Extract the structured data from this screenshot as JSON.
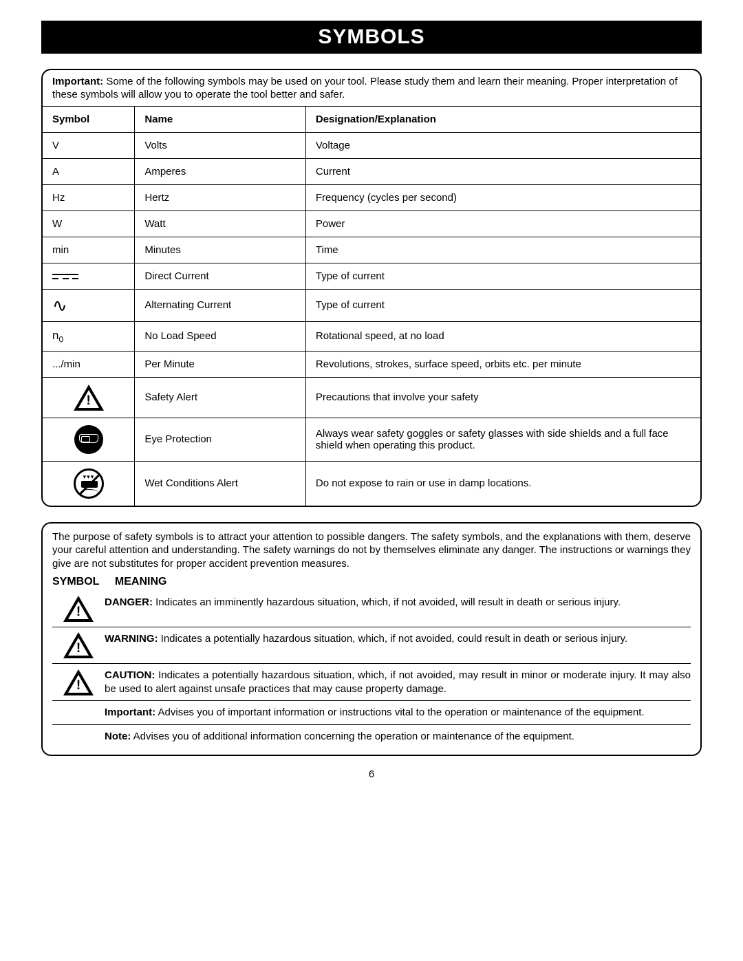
{
  "title": "SYMBOLS",
  "intro_bold": "Important:",
  "intro_text": " Some of the following symbols may be used on your tool. Please study them and learn their meaning. Proper interpretation of these symbols will allow you to operate the tool better and safer.",
  "headers": {
    "symbol": "Symbol",
    "name": "Name",
    "desc": "Designation/Explanation"
  },
  "rows": [
    {
      "sym_text": "V",
      "name": "Volts",
      "desc": "Voltage"
    },
    {
      "sym_text": "A",
      "name": "Amperes",
      "desc": "Current"
    },
    {
      "sym_text": "Hz",
      "name": "Hertz",
      "desc": "Frequency (cycles per second)"
    },
    {
      "sym_text": "W",
      "name": "Watt",
      "desc": "Power"
    },
    {
      "sym_text": "min",
      "name": "Minutes",
      "desc": "Time"
    },
    {
      "icon": "dc",
      "name": "Direct Current",
      "desc": "Type of current"
    },
    {
      "icon": "ac",
      "name": "Alternating Current",
      "desc": "Type of current"
    },
    {
      "icon": "n0",
      "name": "No Load Speed",
      "desc": "Rotational speed, at no load"
    },
    {
      "sym_text": ".../min",
      "name": "Per Minute",
      "desc": "Revolutions, strokes, surface speed, orbits etc. per minute"
    },
    {
      "icon": "alert",
      "name": "Safety Alert",
      "desc": "Precautions that involve your safety"
    },
    {
      "icon": "eye",
      "name": "Eye Protection",
      "desc": "Always wear safety goggles or safety glasses with side shields and a full face shield when operating this product."
    },
    {
      "icon": "wet",
      "name": "Wet Conditions Alert",
      "desc": "Do not expose to rain or use in damp locations."
    }
  ],
  "meaning_intro": "The purpose of safety symbols is to attract your attention to possible dangers. The safety symbols, and the explanations with them, deserve your careful attention and understanding. The safety warnings do not by themselves eliminate any danger. The instructions or warnings they give are not substitutes for proper accident prevention measures.",
  "meaning_head": {
    "c1": "SYMBOL",
    "c2": "MEANING"
  },
  "meanings": [
    {
      "icon": "alert",
      "bold": "DANGER:",
      "text": " Indicates an imminently hazardous situation, which, if not avoided, will result in death or serious injury."
    },
    {
      "icon": "alert",
      "bold": "WARNING:",
      "text": " Indicates a potentially hazardous situation, which, if not avoided, could result in death or serious injury."
    },
    {
      "icon": "alert",
      "bold": "CAUTION:",
      "text": " Indicates a potentially hazardous situation, which, if not avoided, may result in minor or moderate injury. It may also be used to alert against unsafe practices that may cause property damage."
    },
    {
      "icon": "",
      "bold": "Important:",
      "text": " Advises you of important information or instructions vital to the operation or maintenance of the equipment."
    },
    {
      "icon": "",
      "bold": "Note:",
      "text": " Advises you of additional information concerning the operation or maintenance of the equipment."
    }
  ],
  "page_number": "6",
  "icons": {
    "n0_label": "n",
    "n0_sub": "0",
    "ac_glyph": "∿"
  },
  "colors": {
    "fg": "#000000",
    "bg": "#ffffff"
  }
}
